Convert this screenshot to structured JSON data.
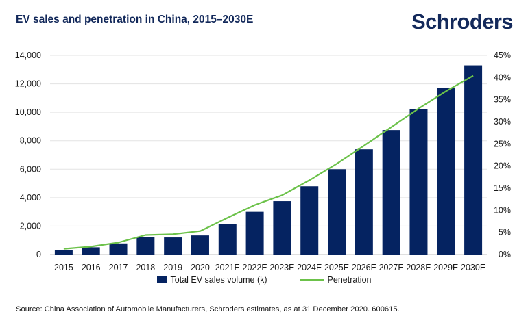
{
  "header": {
    "title": "EV sales and penetration in China, 2015–2030E",
    "brand": "Schroders"
  },
  "footer": {
    "source": "Source: China Association of Automobile Manufacturers, Schroders estimates, as at 31 December 2020. 600615."
  },
  "colors": {
    "bar": "#052361",
    "line": "#6cc24a",
    "title": "#12285a"
  },
  "chart_data": {
    "type": "bar",
    "categories": [
      "2015",
      "2016",
      "2017",
      "2018",
      "2019",
      "2020",
      "2021E",
      "2022E",
      "2023E",
      "2024E",
      "2025E",
      "2026E",
      "2027E",
      "2028E",
      "2029E",
      "2030E"
    ],
    "series": [
      {
        "name": "Total EV sales volume (k)",
        "type": "bar",
        "axis": "left",
        "values": [
          330,
          510,
          780,
          1250,
          1200,
          1340,
          2150,
          3000,
          3750,
          4800,
          6000,
          7400,
          8750,
          10200,
          11700,
          13300
        ]
      },
      {
        "name": "Penetration",
        "type": "line",
        "axis": "right",
        "values": [
          1.3,
          1.8,
          2.7,
          4.4,
          4.6,
          5.3,
          8.3,
          11.2,
          13.4,
          16.8,
          20.5,
          24.6,
          28.8,
          33.0,
          36.9,
          40.4
        ]
      }
    ],
    "y_left": {
      "ylim": [
        0,
        14000
      ],
      "ticks": [
        "0",
        "2,000",
        "4,000",
        "6,000",
        "8,000",
        "10,000",
        "12,000",
        "14,000"
      ]
    },
    "y_right": {
      "ylim": [
        0,
        45
      ],
      "ticks": [
        "0%",
        "5%",
        "10%",
        "15%",
        "20%",
        "25%",
        "30%",
        "35%",
        "40%",
        "45%"
      ]
    },
    "grid": true,
    "legend_position": "bottom"
  }
}
